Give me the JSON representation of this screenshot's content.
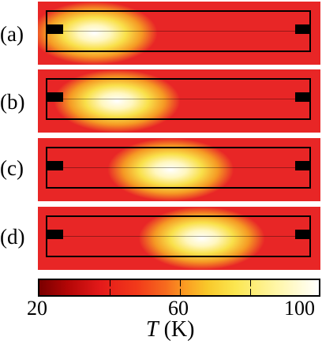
{
  "panels": [
    {
      "label": "(a)",
      "hotspot_fraction": 0.2
    },
    {
      "label": "(b)",
      "hotspot_fraction": 0.28
    },
    {
      "label": "(c)",
      "hotspot_fraction": 0.47
    },
    {
      "label": "(d)",
      "hotspot_fraction": 0.58
    }
  ],
  "colorbar": {
    "min": 20,
    "max": 100,
    "tick_labels": [
      "20",
      "60",
      "100"
    ],
    "label_symbol": "T",
    "label_unit": "(K)"
  },
  "colors": {
    "background": "#e82626",
    "hot": "#ffffff",
    "warm": "#f9e04a",
    "frame": "#000000"
  }
}
